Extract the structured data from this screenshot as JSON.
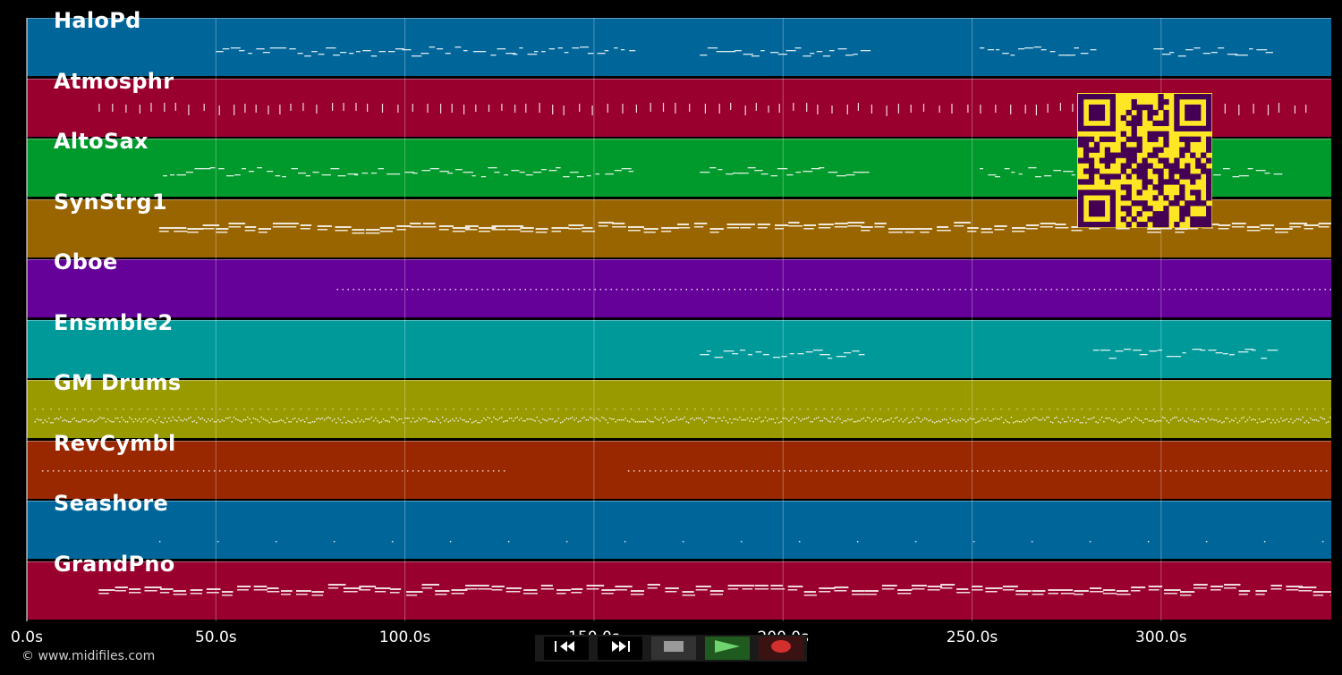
{
  "tracks": [
    {
      "name": "HaloPd",
      "color": "#00669a",
      "style": "phrase",
      "segments": [
        [
          50,
          160
        ],
        [
          178,
          221
        ],
        [
          252,
          283
        ],
        [
          298,
          329
        ]
      ]
    },
    {
      "name": "Atmosphr",
      "color": "#99002e",
      "style": "ticks",
      "segments": [
        [
          19,
          341
        ]
      ]
    },
    {
      "name": "AltoSax",
      "color": "#00992b",
      "style": "phrase",
      "segments": [
        [
          36,
          160
        ],
        [
          178,
          221
        ],
        [
          252,
          330
        ]
      ]
    },
    {
      "name": "SynStrg1",
      "color": "#996500",
      "style": "long",
      "segments": [
        [
          35,
          345
        ]
      ]
    },
    {
      "name": "Oboe",
      "color": "#650099",
      "style": "dots",
      "segments": [
        [
          82,
          345
        ]
      ]
    },
    {
      "name": "Ensmble2",
      "color": "#00999a",
      "style": "phrase",
      "segments": [
        [
          178,
          221
        ],
        [
          282,
          329
        ]
      ]
    },
    {
      "name": "GM Drums",
      "color": "#999900",
      "style": "drums",
      "segments": [
        [
          2,
          345
        ]
      ]
    },
    {
      "name": "RevCymbl",
      "color": "#992700",
      "style": "dots",
      "segments": [
        [
          4,
          127
        ],
        [
          159,
          345
        ]
      ]
    },
    {
      "name": "Seashore",
      "color": "#00669a",
      "style": "sparse",
      "segments": [
        [
          35,
          345
        ]
      ]
    },
    {
      "name": "GrandPno",
      "color": "#99002e",
      "style": "long",
      "segments": [
        [
          19,
          345
        ]
      ]
    }
  ],
  "timeline": {
    "max_seconds": 345,
    "ticks": [
      {
        "t": 0,
        "label": "0.0s"
      },
      {
        "t": 50,
        "label": "50.0s"
      },
      {
        "t": 100,
        "label": "100.0s"
      },
      {
        "t": 150,
        "label": "150.0s"
      },
      {
        "t": 200,
        "label": "200.0s"
      },
      {
        "t": 250,
        "label": "250.0s"
      },
      {
        "t": 300,
        "label": "300.0s"
      }
    ]
  },
  "transport": {
    "buttons": [
      {
        "name": "rewind-button",
        "icon": "rewind-icon",
        "bg": "#000000"
      },
      {
        "name": "fast-forward-button",
        "icon": "fast-forward-icon",
        "bg": "#000000"
      },
      {
        "name": "stop-button",
        "icon": "stop-icon",
        "bg": "#333333"
      },
      {
        "name": "play-button",
        "icon": "play-icon",
        "bg": "#1f5a1f"
      },
      {
        "name": "record-button",
        "icon": "record-icon",
        "bg": "#3a1212"
      }
    ]
  },
  "copyright": "© www.midifiles.com",
  "qr": {
    "color": "#fde725",
    "dark": "#440154"
  }
}
